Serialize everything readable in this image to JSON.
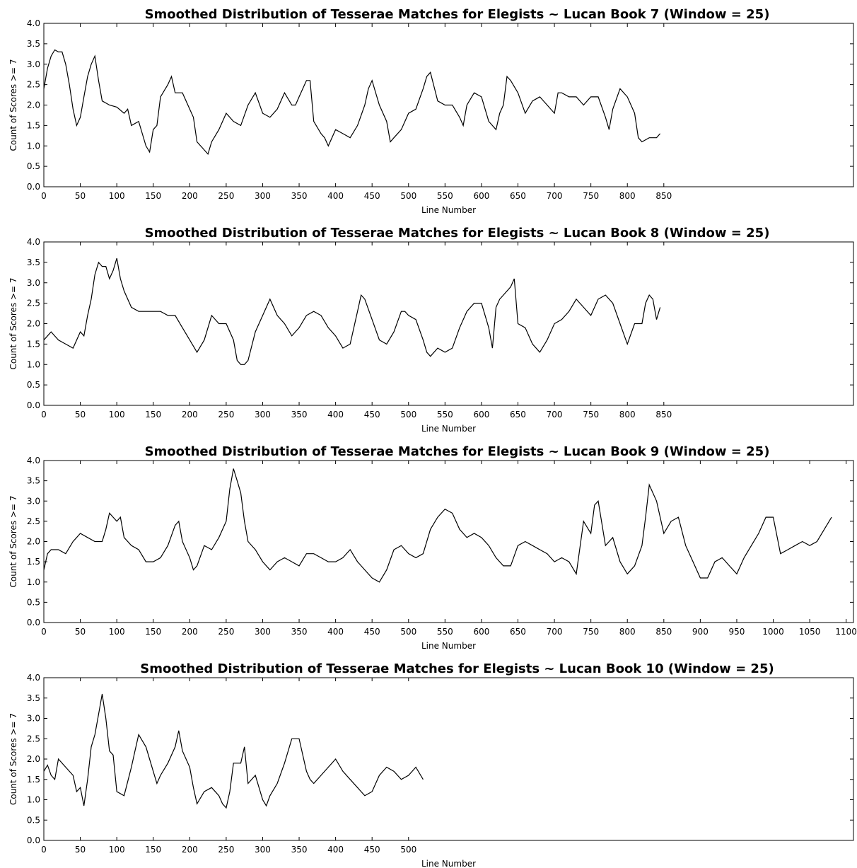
{
  "figure": {
    "background": "#ffffff",
    "line_color": "#000000"
  },
  "chart_data": [
    {
      "type": "line",
      "title": "Smoothed Distribution of Tesserae Matches for Elegists ~ Lucan Book 7 (Window = 25)",
      "xlabel": "Line Number",
      "ylabel": "Count of Scores >= 7",
      "xlim": [
        0,
        1110
      ],
      "ylim": [
        0,
        4.0
      ],
      "xticks": [
        0,
        50,
        100,
        150,
        200,
        250,
        300,
        350,
        400,
        450,
        500,
        550,
        600,
        650,
        700,
        750,
        800,
        850
      ],
      "yticks": [
        "0.0",
        "0.5",
        "1.0",
        "1.5",
        "2.0",
        "2.5",
        "3.0",
        "3.5",
        "4.0"
      ],
      "grid": false,
      "series": [
        {
          "x": [
            0,
            5,
            10,
            15,
            20,
            25,
            30,
            35,
            40,
            45,
            50,
            55,
            60,
            65,
            70,
            75,
            80,
            90,
            100,
            110,
            115,
            120,
            130,
            140,
            145,
            150,
            155,
            160,
            170,
            175,
            180,
            190,
            200,
            205,
            210,
            220,
            225,
            230,
            240,
            250,
            260,
            270,
            280,
            290,
            300,
            310,
            320,
            330,
            340,
            345,
            350,
            360,
            365,
            370,
            380,
            385,
            390,
            400,
            410,
            420,
            430,
            440,
            445,
            450,
            455,
            460,
            470,
            475,
            480,
            490,
            500,
            510,
            520,
            525,
            530,
            540,
            550,
            560,
            570,
            575,
            580,
            590,
            600,
            610,
            620,
            625,
            630,
            635,
            640,
            650,
            660,
            670,
            680,
            690,
            700,
            705,
            710,
            720,
            730,
            740,
            750,
            760,
            770,
            775,
            780,
            790,
            800,
            810,
            815,
            820,
            830,
            840,
            845
          ],
          "y": [
            2.4,
            2.9,
            3.2,
            3.35,
            3.3,
            3.3,
            3.0,
            2.5,
            1.9,
            1.5,
            1.7,
            2.2,
            2.7,
            3.0,
            3.2,
            2.6,
            2.1,
            2.0,
            1.95,
            1.8,
            1.9,
            1.5,
            1.6,
            1.0,
            0.85,
            1.4,
            1.5,
            2.2,
            2.5,
            2.7,
            2.3,
            2.3,
            1.9,
            1.7,
            1.1,
            0.9,
            0.8,
            1.1,
            1.4,
            1.8,
            1.6,
            1.5,
            2.0,
            2.3,
            1.8,
            1.7,
            1.9,
            2.3,
            2.0,
            2.0,
            2.2,
            2.6,
            2.6,
            1.6,
            1.3,
            1.2,
            1.0,
            1.4,
            1.3,
            1.2,
            1.5,
            2.0,
            2.4,
            2.6,
            2.3,
            2.0,
            1.6,
            1.1,
            1.2,
            1.4,
            1.8,
            1.9,
            2.4,
            2.7,
            2.8,
            2.1,
            2.0,
            2.0,
            1.7,
            1.5,
            2.0,
            2.3,
            2.2,
            1.6,
            1.4,
            1.8,
            2.0,
            2.7,
            2.6,
            2.3,
            1.8,
            2.1,
            2.2,
            2.0,
            1.8,
            2.3,
            2.3,
            2.2,
            2.2,
            2.0,
            2.2,
            2.2,
            1.7,
            1.4,
            1.9,
            2.4,
            2.2,
            1.8,
            1.2,
            1.1,
            1.2,
            1.2,
            1.3
          ]
        }
      ]
    },
    {
      "type": "line",
      "title": "Smoothed Distribution of Tesserae Matches for Elegists ~ Lucan Book 8 (Window = 25)",
      "xlabel": "Line Number",
      "ylabel": "Count of Scores >= 7",
      "xlim": [
        0,
        1110
      ],
      "ylim": [
        0,
        4.0
      ],
      "xticks": [
        0,
        50,
        100,
        150,
        200,
        250,
        300,
        350,
        400,
        450,
        500,
        550,
        600,
        650,
        700,
        750,
        800,
        850
      ],
      "yticks": [
        "0.0",
        "0.5",
        "1.0",
        "1.5",
        "2.0",
        "2.5",
        "3.0",
        "3.5",
        "4.0"
      ],
      "grid": false,
      "series": [
        {
          "x": [
            0,
            5,
            10,
            20,
            30,
            40,
            50,
            55,
            60,
            65,
            70,
            75,
            80,
            85,
            90,
            95,
            100,
            105,
            110,
            120,
            130,
            140,
            150,
            160,
            170,
            180,
            190,
            200,
            210,
            220,
            230,
            240,
            250,
            260,
            265,
            270,
            275,
            280,
            290,
            300,
            310,
            320,
            330,
            340,
            350,
            360,
            370,
            380,
            390,
            400,
            410,
            420,
            430,
            435,
            440,
            450,
            460,
            470,
            480,
            490,
            495,
            500,
            510,
            520,
            525,
            530,
            540,
            550,
            560,
            570,
            580,
            590,
            600,
            610,
            615,
            620,
            625,
            630,
            640,
            645,
            650,
            660,
            670,
            680,
            690,
            700,
            710,
            720,
            730,
            740,
            750,
            760,
            770,
            780,
            790,
            800,
            810,
            820,
            825,
            830,
            835,
            840,
            845
          ],
          "y": [
            1.6,
            1.7,
            1.8,
            1.6,
            1.5,
            1.4,
            1.8,
            1.7,
            2.2,
            2.6,
            3.2,
            3.5,
            3.4,
            3.4,
            3.1,
            3.3,
            3.6,
            3.1,
            2.8,
            2.4,
            2.3,
            2.3,
            2.3,
            2.3,
            2.2,
            2.2,
            1.9,
            1.6,
            1.3,
            1.6,
            2.2,
            2.0,
            2.0,
            1.6,
            1.1,
            1.0,
            1.0,
            1.1,
            1.8,
            2.2,
            2.6,
            2.2,
            2.0,
            1.7,
            1.9,
            2.2,
            2.3,
            2.2,
            1.9,
            1.7,
            1.4,
            1.5,
            2.3,
            2.7,
            2.6,
            2.1,
            1.6,
            1.5,
            1.8,
            2.3,
            2.3,
            2.2,
            2.1,
            1.6,
            1.3,
            1.2,
            1.4,
            1.3,
            1.4,
            1.9,
            2.3,
            2.5,
            2.5,
            1.9,
            1.4,
            2.4,
            2.6,
            2.7,
            2.9,
            3.1,
            2.0,
            1.9,
            1.5,
            1.3,
            1.6,
            2.0,
            2.1,
            2.3,
            2.6,
            2.4,
            2.2,
            2.6,
            2.7,
            2.5,
            2.0,
            1.5,
            2.0,
            2.0,
            2.5,
            2.7,
            2.6,
            2.1,
            2.4
          ]
        }
      ]
    },
    {
      "type": "line",
      "title": "Smoothed Distribution of Tesserae Matches for Elegists ~ Lucan Book 9 (Window = 25)",
      "xlabel": "Line Number",
      "ylabel": "Count of Scores >= 7",
      "xlim": [
        0,
        1110
      ],
      "ylim": [
        0,
        4.0
      ],
      "xticks": [
        0,
        50,
        100,
        150,
        200,
        250,
        300,
        350,
        400,
        450,
        500,
        550,
        600,
        650,
        700,
        750,
        800,
        850,
        900,
        950,
        1000,
        1050,
        1100
      ],
      "yticks": [
        "0.0",
        "0.5",
        "1.0",
        "1.5",
        "2.0",
        "2.5",
        "3.0",
        "3.5",
        "4.0"
      ],
      "grid": false,
      "series": [
        {
          "x": [
            0,
            5,
            10,
            20,
            30,
            40,
            50,
            60,
            70,
            80,
            85,
            90,
            100,
            105,
            110,
            120,
            130,
            140,
            150,
            160,
            170,
            180,
            185,
            190,
            200,
            205,
            210,
            220,
            230,
            240,
            250,
            255,
            260,
            265,
            270,
            275,
            280,
            290,
            300,
            310,
            320,
            330,
            340,
            350,
            360,
            370,
            380,
            390,
            400,
            410,
            420,
            430,
            440,
            450,
            460,
            470,
            480,
            490,
            500,
            510,
            520,
            530,
            540,
            550,
            560,
            570,
            580,
            590,
            600,
            610,
            620,
            630,
            640,
            650,
            660,
            670,
            680,
            690,
            700,
            710,
            720,
            730,
            740,
            750,
            755,
            760,
            770,
            780,
            790,
            800,
            810,
            820,
            825,
            830,
            840,
            850,
            860,
            870,
            880,
            890,
            900,
            910,
            920,
            930,
            940,
            950,
            960,
            970,
            980,
            990,
            1000,
            1010,
            1020,
            1030,
            1040,
            1050,
            1060,
            1070,
            1080
          ],
          "y": [
            1.3,
            1.7,
            1.8,
            1.8,
            1.7,
            2.0,
            2.2,
            2.1,
            2.0,
            2.0,
            2.3,
            2.7,
            2.5,
            2.6,
            2.1,
            1.9,
            1.8,
            1.5,
            1.5,
            1.6,
            1.9,
            2.4,
            2.5,
            2.0,
            1.6,
            1.3,
            1.4,
            1.9,
            1.8,
            2.1,
            2.5,
            3.3,
            3.8,
            3.5,
            3.2,
            2.5,
            2.0,
            1.8,
            1.5,
            1.3,
            1.5,
            1.6,
            1.5,
            1.4,
            1.7,
            1.7,
            1.6,
            1.5,
            1.5,
            1.6,
            1.8,
            1.5,
            1.3,
            1.1,
            1.0,
            1.3,
            1.8,
            1.9,
            1.7,
            1.6,
            1.7,
            2.3,
            2.6,
            2.8,
            2.7,
            2.3,
            2.1,
            2.2,
            2.1,
            1.9,
            1.6,
            1.4,
            1.4,
            1.9,
            2.0,
            1.9,
            1.8,
            1.7,
            1.5,
            1.6,
            1.5,
            1.2,
            2.5,
            2.2,
            2.9,
            3.0,
            1.9,
            2.1,
            1.5,
            1.2,
            1.4,
            1.9,
            2.6,
            3.4,
            3.0,
            2.2,
            2.5,
            2.6,
            1.9,
            1.5,
            1.1,
            1.1,
            1.5,
            1.6,
            1.4,
            1.2,
            1.6,
            1.9,
            2.2,
            2.6,
            2.6,
            1.7,
            1.8,
            1.9,
            2.0,
            1.9,
            2.0,
            2.3,
            2.6
          ]
        }
      ]
    },
    {
      "type": "line",
      "title": "Smoothed Distribution of Tesserae Matches for Elegists ~ Lucan Book 10 (Window = 25)",
      "xlabel": "Line Number",
      "ylabel": "Count of Scores >= 7",
      "xlim": [
        0,
        1110
      ],
      "ylim": [
        0,
        4.0
      ],
      "xticks": [
        0,
        50,
        100,
        150,
        200,
        250,
        300,
        350,
        400,
        450,
        500
      ],
      "yticks": [
        "0.0",
        "0.5",
        "1.0",
        "1.5",
        "2.0",
        "2.5",
        "3.0",
        "3.5",
        "4.0"
      ],
      "grid": false,
      "series": [
        {
          "x": [
            0,
            5,
            10,
            15,
            20,
            30,
            40,
            45,
            50,
            55,
            60,
            65,
            70,
            75,
            80,
            85,
            90,
            95,
            100,
            110,
            120,
            125,
            130,
            140,
            150,
            155,
            160,
            170,
            180,
            185,
            190,
            200,
            205,
            210,
            220,
            230,
            240,
            245,
            250,
            255,
            260,
            270,
            275,
            280,
            290,
            300,
            305,
            310,
            320,
            330,
            340,
            345,
            350,
            360,
            365,
            370,
            380,
            390,
            400,
            410,
            420,
            430,
            440,
            450,
            460,
            470,
            480,
            490,
            500,
            510,
            520
          ],
          "y": [
            1.7,
            1.85,
            1.6,
            1.5,
            2.0,
            1.8,
            1.6,
            1.2,
            1.3,
            0.85,
            1.5,
            2.3,
            2.6,
            3.1,
            3.6,
            3.0,
            2.2,
            2.1,
            1.2,
            1.1,
            1.8,
            2.2,
            2.6,
            2.3,
            1.7,
            1.4,
            1.6,
            1.9,
            2.3,
            2.7,
            2.2,
            1.8,
            1.3,
            0.9,
            1.2,
            1.3,
            1.1,
            0.9,
            0.8,
            1.2,
            1.9,
            1.9,
            2.3,
            1.4,
            1.6,
            1.0,
            0.85,
            1.1,
            1.4,
            1.9,
            2.5,
            2.5,
            2.5,
            1.7,
            1.5,
            1.4,
            1.6,
            1.8,
            2.0,
            1.7,
            1.5,
            1.3,
            1.1,
            1.2,
            1.6,
            1.8,
            1.7,
            1.5,
            1.6,
            1.8,
            1.5
          ]
        }
      ]
    }
  ]
}
